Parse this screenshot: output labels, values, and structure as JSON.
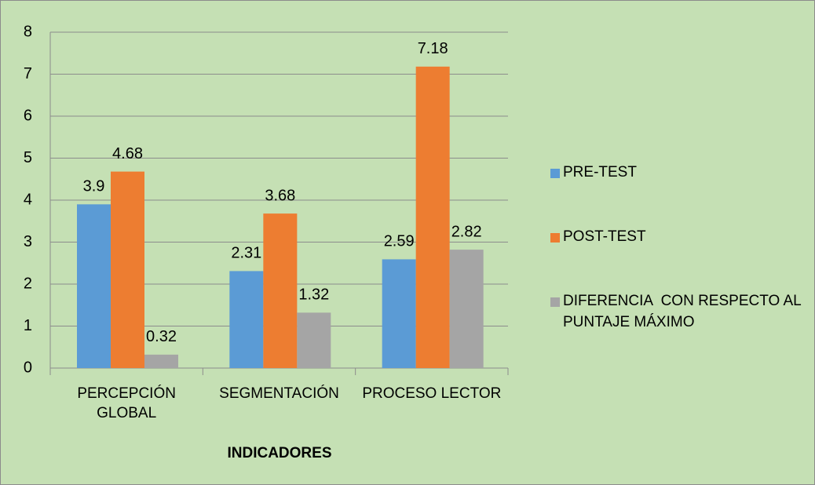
{
  "chart_data": {
    "type": "bar",
    "x_label": "INDICADORES",
    "categories": [
      "PERCEPCIÓN GLOBAL",
      "SEGMENTACIÓN",
      "PROCESO LECTOR"
    ],
    "series": [
      {
        "name": "PRE-TEST",
        "color": "#5b9bd5",
        "values": [
          3.9,
          2.31,
          2.59
        ]
      },
      {
        "name": "POST-TEST",
        "color": "#ed7d31",
        "values": [
          4.68,
          3.68,
          7.18
        ]
      },
      {
        "name": "DIFERENCIA  CON RESPECTO AL PUNTAJE MÁXIMO",
        "color": "#a5a5a5",
        "values": [
          0.32,
          1.32,
          2.82
        ]
      }
    ],
    "ylim": [
      0,
      8
    ],
    "yticks": [
      0,
      1,
      2,
      3,
      4,
      5,
      6,
      7,
      8
    ],
    "grid": true,
    "legend": "right"
  }
}
